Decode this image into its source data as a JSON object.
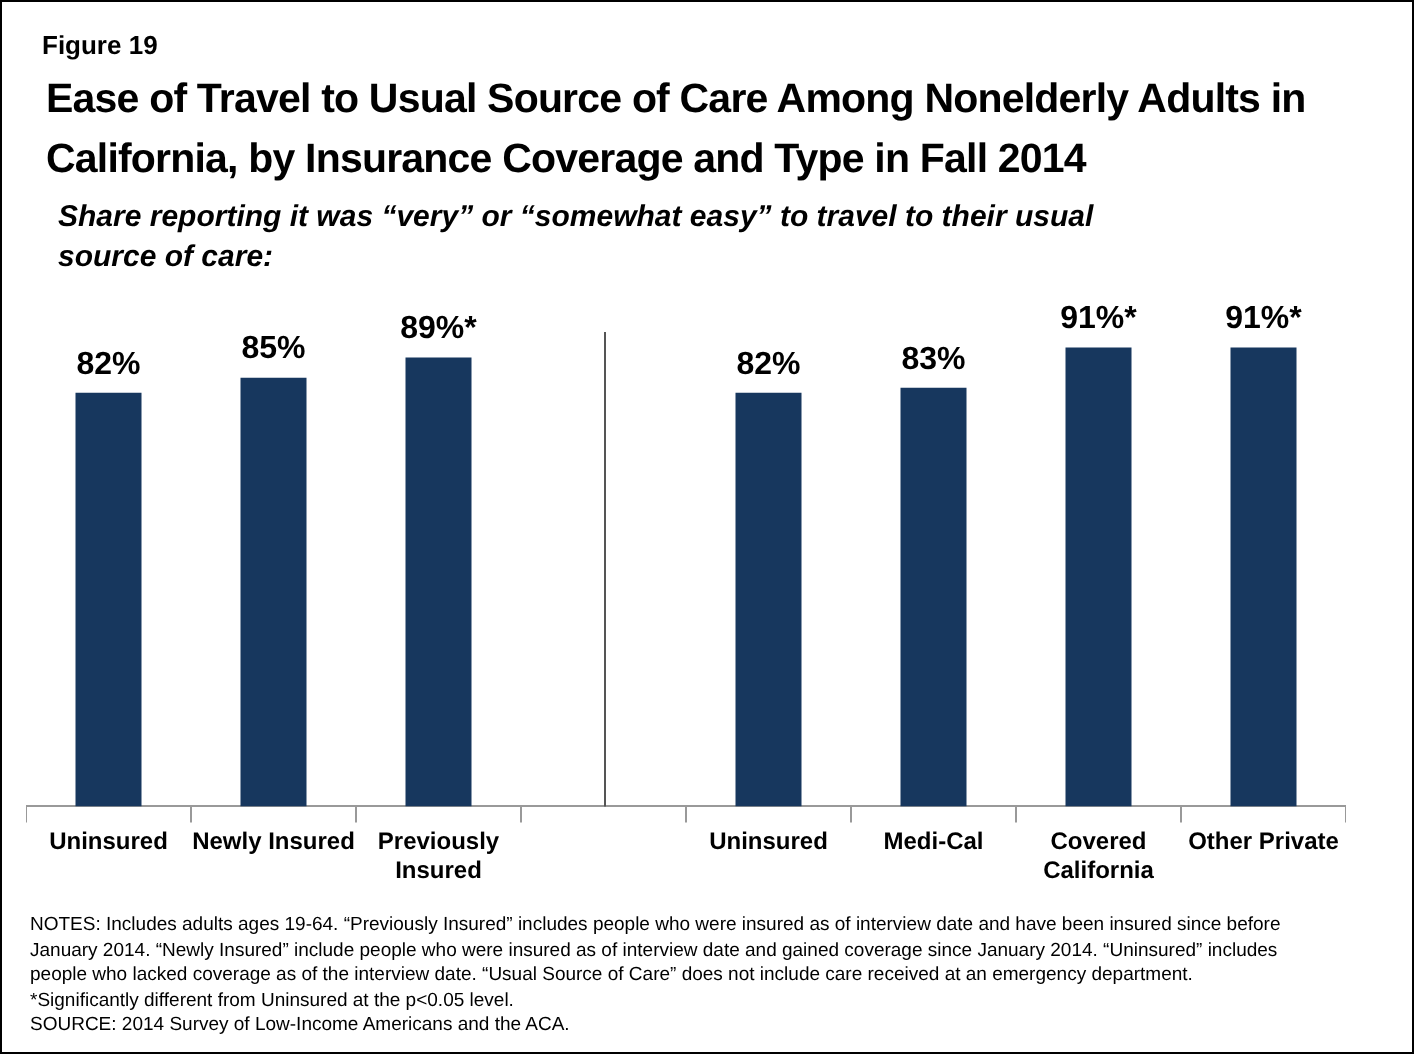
{
  "chart_data": {
    "type": "bar",
    "title": "Ease of Travel to Usual Source of Care Among Nonelderly Adults in California, by Insurance Coverage and Type in Fall 2014",
    "subtitle": "Share reporting it was “very” or “somewhat easy” to travel to their usual source of care:",
    "categories": [
      "Uninsured",
      "Newly Insured",
      "Previously Insured",
      null,
      "Uninsured",
      "Medi-Cal",
      "Covered California",
      "Other Private"
    ],
    "values": [
      82,
      85,
      89,
      null,
      82,
      83,
      91,
      91
    ],
    "value_labels": [
      "82%",
      "85%",
      "89%*",
      null,
      "82%",
      "83%",
      "91%*",
      "91%*"
    ],
    "color": "#17375e",
    "annotations": [
      "Figure 19",
      "NOTES: Includes adults ages 19-64. “Previously Insured” includes people who were insured as of interview date and have been insured since before January 2014. “Newly Insured” include people who were insured as of interview date and gained coverage since January 2014. “Uninsured” includes people who lacked coverage as of the interview date. “Usual Source of Care” does not include care received at an emergency department.",
      "*Significantly different from Uninsured at the p<0.05 level.",
      "SOURCE: 2014 Survey of Low-Income Americans and the ACA."
    ]
  }
}
